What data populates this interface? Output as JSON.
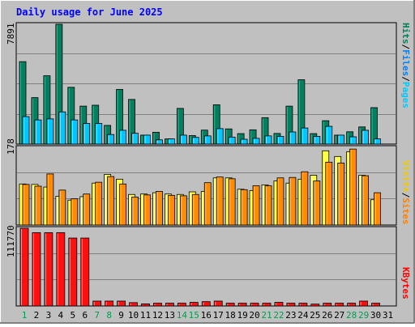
{
  "chart_data": [
    {
      "type": "bar",
      "title": "Daily usage for June 2025",
      "panel": "top",
      "ymax_label": "7891",
      "ylim": [
        0,
        7891
      ],
      "categories": [
        "1",
        "2",
        "3",
        "4",
        "5",
        "6",
        "7",
        "8",
        "9",
        "10",
        "11",
        "12",
        "13",
        "14",
        "15",
        "16",
        "17",
        "18",
        "19",
        "20",
        "21",
        "22",
        "23",
        "24",
        "25",
        "26",
        "27",
        "28",
        "29",
        "30",
        "31"
      ],
      "series": [
        {
          "name": "Hits",
          "values": [
            5430,
            3060,
            4500,
            7891,
            3740,
            2500,
            2560,
            1230,
            3600,
            2940,
            590,
            780,
            340,
            2350,
            560,
            920,
            2590,
            1000,
            690,
            940,
            1740,
            700,
            2500,
            4240,
            690,
            1540,
            590,
            810,
            1130,
            2400,
            0
          ]
        },
        {
          "name": "Files",
          "values": [
            1810,
            1590,
            1660,
            2120,
            1590,
            1360,
            1360,
            630,
            910,
            710,
            590,
            280,
            340,
            590,
            440,
            540,
            1020,
            460,
            320,
            380,
            540,
            510,
            800,
            1060,
            510,
            1170,
            590,
            480,
            910,
            340,
            0
          ]
        },
        {
          "name": "Pages",
          "values": [
            0,
            0,
            0,
            0,
            0,
            0,
            0,
            0,
            0,
            0,
            0,
            0,
            0,
            0,
            0,
            0,
            0,
            0,
            0,
            0,
            0,
            0,
            0,
            0,
            0,
            0,
            0,
            0,
            0,
            0,
            0
          ]
        }
      ],
      "legend": [
        {
          "label": "Hits",
          "color": "#00805c"
        },
        {
          "label": "/",
          "color": "#000000"
        },
        {
          "label": "Files",
          "color": "#0080ff"
        },
        {
          "label": "/",
          "color": "#000000"
        },
        {
          "label": "Pages",
          "color": "#00c8ff"
        }
      ],
      "colors": {
        "Hits": "#008060",
        "Files": "#00c8ff"
      }
    },
    {
      "type": "bar",
      "panel": "middle",
      "ymax_label": "178",
      "ylim": [
        0,
        178
      ],
      "categories": [
        "1",
        "2",
        "3",
        "4",
        "5",
        "6",
        "7",
        "8",
        "9",
        "10",
        "11",
        "12",
        "13",
        "14",
        "15",
        "16",
        "17",
        "18",
        "19",
        "20",
        "21",
        "22",
        "23",
        "24",
        "25",
        "26",
        "27",
        "28",
        "29",
        "30",
        "31"
      ],
      "series": [
        {
          "name": "Visits",
          "values": [
            94,
            93,
            87,
            66,
            57,
            65,
            96,
            116,
            105,
            70,
            71,
            74,
            71,
            70,
            76,
            77,
            108,
            108,
            82,
            79,
            92,
            101,
            96,
            105,
            114,
            170,
            157,
            168,
            114,
            58,
            0
          ]
        },
        {
          "name": "Sites",
          "values": [
            93,
            89,
            117,
            80,
            60,
            71,
            98,
            111,
            94,
            64,
            69,
            77,
            68,
            67,
            70,
            97,
            110,
            106,
            81,
            90,
            90,
            108,
            109,
            122,
            101,
            144,
            142,
            174,
            113,
            74,
            0
          ]
        }
      ],
      "legend": [
        {
          "label": "Visits",
          "color": "#f0c800"
        },
        {
          "label": "/",
          "color": "#000000"
        },
        {
          "label": "Sites",
          "color": "#ff8000"
        }
      ],
      "colors": {
        "Visits": "#ffff40",
        "Sites": "#ff8c00"
      }
    },
    {
      "type": "bar",
      "panel": "bottom",
      "ymax_label": "111770",
      "ylim": [
        0,
        111770
      ],
      "categories": [
        "1",
        "2",
        "3",
        "4",
        "5",
        "6",
        "7",
        "8",
        "9",
        "10",
        "11",
        "12",
        "13",
        "14",
        "15",
        "16",
        "17",
        "18",
        "19",
        "20",
        "21",
        "22",
        "23",
        "24",
        "25",
        "26",
        "27",
        "28",
        "29",
        "30",
        "31"
      ],
      "series": [
        {
          "name": "KBytes",
          "values": [
            111770,
            105400,
            105400,
            105400,
            97700,
            97700,
            7000,
            7000,
            7000,
            4800,
            3000,
            4000,
            4000,
            4000,
            5200,
            6200,
            7000,
            4000,
            4000,
            4000,
            4000,
            5200,
            4000,
            4000,
            2700,
            4000,
            4000,
            4000,
            7000,
            4000,
            0
          ]
        }
      ],
      "legend": [
        {
          "label": "KBytes",
          "color": "#ff0000"
        }
      ],
      "colors": {
        "KBytes": "#ff1010"
      }
    }
  ],
  "weekend_days": [
    "1",
    "7",
    "8",
    "14",
    "15",
    "21",
    "22",
    "28",
    "29"
  ]
}
